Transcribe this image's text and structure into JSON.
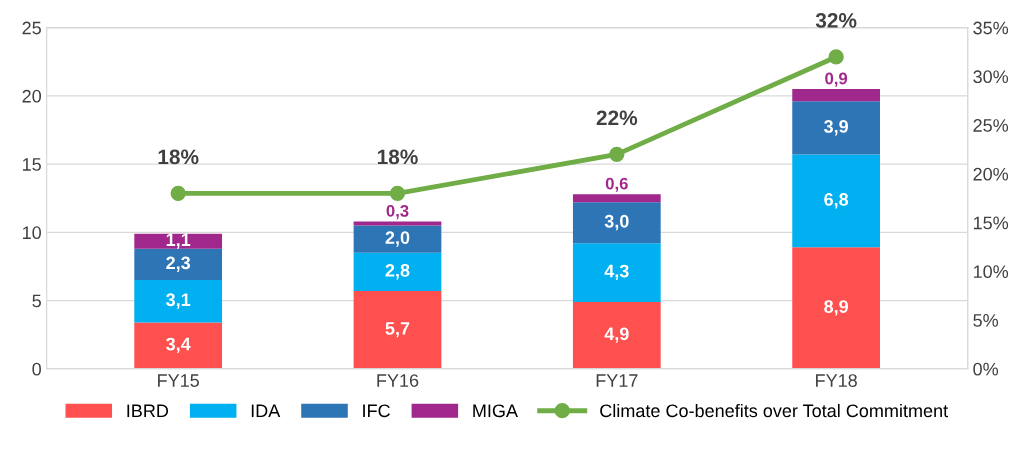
{
  "chart_data": {
    "type": "bar",
    "stacked": true,
    "categories": [
      "FY15",
      "FY16",
      "FY17",
      "FY18"
    ],
    "series": [
      {
        "name": "IBRD",
        "color": "#ff5050",
        "values": [
          3.4,
          5.7,
          4.9,
          8.9
        ],
        "value_labels": [
          "3,4",
          "5,7",
          "4,9",
          "8,9"
        ]
      },
      {
        "name": "IDA",
        "color": "#00b0f0",
        "values": [
          3.1,
          2.8,
          4.3,
          6.8
        ],
        "value_labels": [
          "3,1",
          "2,8",
          "4,3",
          "6,8"
        ]
      },
      {
        "name": "IFC",
        "color": "#2e75b6",
        "values": [
          2.3,
          2.0,
          3.0,
          3.9
        ],
        "value_labels": [
          "2,3",
          "2,0",
          "3,0",
          "3,9"
        ]
      },
      {
        "name": "MIGA",
        "color": "#a0288c",
        "values": [
          1.1,
          0.3,
          0.6,
          0.9
        ],
        "value_labels": [
          "1,1",
          "0,3",
          "0,6",
          "0,9"
        ]
      },
      {
        "name": "Climate Co-benefits over Total Commitment",
        "type": "line",
        "axis": "y2",
        "color": "#70ad47",
        "marker": "circle",
        "values": [
          18,
          18,
          22,
          32
        ],
        "value_labels": [
          "18%",
          "18%",
          "22%",
          "32%"
        ]
      }
    ],
    "ylim": [
      0,
      25
    ],
    "yticks": [
      0,
      5,
      10,
      15,
      20,
      25
    ],
    "y2lim": [
      0,
      35
    ],
    "y2ticks": [
      {
        "value": 0,
        "label": "0%"
      },
      {
        "value": 5,
        "label": "5%"
      },
      {
        "value": 10,
        "label": "10%"
      },
      {
        "value": 15,
        "label": "15%"
      },
      {
        "value": 20,
        "label": "20%"
      },
      {
        "value": 25,
        "label": "25%"
      },
      {
        "value": 30,
        "label": "30%"
      },
      {
        "value": 35,
        "label": "35%"
      }
    ],
    "grid": "y",
    "legend": "bottom"
  }
}
